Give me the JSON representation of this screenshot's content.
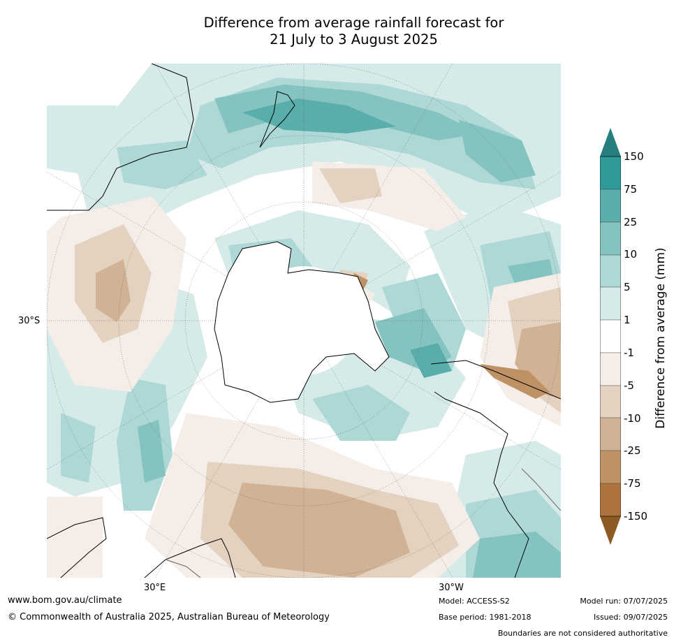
{
  "title_line1": "Difference from average rainfall forecast for",
  "title_line2": "21 July to 3 August 2025",
  "lat_label": "30°S",
  "lon_labels": {
    "east": "30°E",
    "west": "30°W"
  },
  "colorbar": {
    "label": "Difference from average (mm)",
    "ticks": [
      "150",
      "75",
      "25",
      "10",
      "5",
      "1",
      "-1",
      "-5",
      "-10",
      "-25",
      "-75",
      "-150"
    ],
    "colors": {
      "over": "#267e7e",
      "b75_150": "#2e9a99",
      "b25_75": "#59aeac",
      "b10_25": "#85c3c1",
      "b5_10": "#add8d6",
      "b1_5": "#d6eae9",
      "b_neutral": "#ffffff",
      "n1_5": "#f5ede8",
      "n5_10": "#e4d2c1",
      "n10_25": "#d2b295",
      "n25_75": "#bf9265",
      "n75_150": "#ad743d",
      "under": "#8d5a24"
    }
  },
  "footer": {
    "url": "www.bom.gov.au/climate",
    "copyright": "© Commonwealth of Australia 2025, Australian Bureau of Meteorology",
    "model": "Model: ACCESS-S2",
    "base_period": "Base period: 1981-2018",
    "model_run": "Model run: 07/07/2025",
    "issued": "Issued: 09/07/2025",
    "disclaimer": "Boundaries are not considered authoritative"
  }
}
